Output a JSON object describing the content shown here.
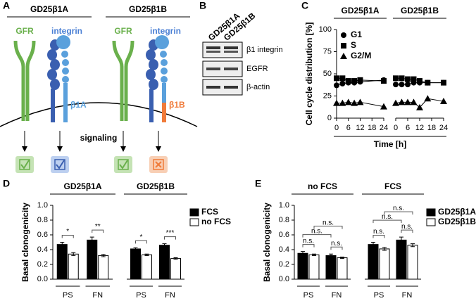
{
  "panel_labels": [
    "A",
    "B",
    "C",
    "D",
    "E"
  ],
  "diagram": {
    "cells": [
      {
        "title": "GD25β1A",
        "gfr": "GFR",
        "integrin": "integrin",
        "subunit": "β1A"
      },
      {
        "title": "GD25β1B",
        "gfr": "GFR",
        "integrin": "integrin",
        "subunit": "β1B"
      }
    ],
    "arrow_label": "signaling"
  },
  "blot": {
    "lanes": [
      "GD25β1A",
      "GD25β1B"
    ],
    "rows": [
      "β1 integrin",
      "EGFR",
      "β-actin"
    ]
  },
  "chart_data": [
    {
      "type": "line",
      "title": "GD25β1A",
      "ylabel": "Cell cycle distribution [%]",
      "xlabel": "Time [h]",
      "x": [
        0,
        3,
        6,
        9,
        12,
        24
      ],
      "xlim": [
        0,
        24
      ],
      "xticks": [
        0,
        6,
        12,
        18,
        24
      ],
      "ylim": [
        0,
        100
      ],
      "yticks": [
        0,
        25,
        50,
        75,
        100
      ],
      "legend": "upper left",
      "series": [
        {
          "name": "G1",
          "marker": "circle",
          "color": "#000000",
          "values": [
            37,
            39,
            40,
            40,
            41,
            43
          ]
        },
        {
          "name": "S",
          "marker": "square",
          "color": "#000000",
          "values": [
            45,
            45,
            42,
            42,
            43,
            42
          ]
        },
        {
          "name": "G2/M",
          "marker": "triangle",
          "color": "#000000",
          "values": [
            17,
            17,
            18,
            17,
            18,
            13
          ]
        }
      ]
    },
    {
      "type": "line",
      "title": "GD25β1B",
      "x": [
        0,
        3,
        6,
        9,
        12,
        16,
        24
      ],
      "xlim": [
        0,
        24
      ],
      "xticks": [
        0,
        6,
        12,
        18,
        24
      ],
      "ylim": [
        0,
        100
      ],
      "series": [
        {
          "marker": "circle",
          "color": "#000000",
          "values": [
            38,
            38,
            38,
            40,
            40,
            40,
            40
          ]
        },
        {
          "marker": "square",
          "color": "#000000",
          "values": [
            45,
            45,
            44,
            44,
            42,
            40,
            40
          ]
        },
        {
          "marker": "triangle",
          "color": "#000000",
          "values": [
            17,
            18,
            18,
            18,
            12,
            22,
            19
          ]
        }
      ]
    },
    {
      "type": "bar",
      "title": "GD25β1A",
      "ylabel": "Basal clonogenicity",
      "categories": [
        "PS",
        "FN"
      ],
      "ylim": [
        0,
        1
      ],
      "yticks": [
        {
          "value": 0,
          "label": "0.0"
        },
        0.2,
        0.4,
        0.6,
        0.8,
        {
          "value": 1,
          "label": "1.0"
        }
      ],
      "series": [
        {
          "color": "#000000",
          "values": [
            0.47,
            0.53
          ],
          "errors": [
            0.03,
            0.04
          ]
        },
        {
          "color": "#ffffff",
          "values": [
            0.34,
            0.32
          ],
          "errors": [
            0.02,
            0.015
          ]
        }
      ],
      "annotations": [
        "*",
        "**"
      ]
    },
    {
      "type": "bar",
      "title": "GD25β1B",
      "categories": [
        "PS",
        "FN"
      ],
      "ylim": [
        0,
        1
      ],
      "legend": "right",
      "series": [
        {
          "name": "FCS",
          "color": "#000000",
          "values": [
            0.41,
            0.46
          ],
          "errors": [
            0.015,
            0.02
          ]
        },
        {
          "name": "no FCS",
          "color": "#ffffff",
          "values": [
            0.33,
            0.28
          ],
          "errors": [
            0.01,
            0.01
          ]
        }
      ],
      "annotations": [
        "*",
        "***"
      ]
    },
    {
      "type": "bar",
      "title": "no FCS",
      "ylabel": "Basal clonogenicity",
      "categories": [
        "PS",
        "FN"
      ],
      "ylim": [
        0,
        1
      ],
      "yticks": [
        {
          "value": 0,
          "label": "0.0"
        },
        0.2,
        0.4,
        0.6,
        0.8,
        {
          "value": 1,
          "label": "1.0"
        }
      ],
      "series": [
        {
          "color": "#000000",
          "values": [
            0.35,
            0.32
          ],
          "errors": [
            0.025,
            0.02
          ]
        },
        {
          "color": "#ffffff",
          "values": [
            0.33,
            0.29
          ],
          "errors": [
            0.01,
            0.01
          ]
        }
      ],
      "annotations": [
        "n.s.",
        "n.s.",
        "n.s.",
        "n.s."
      ]
    },
    {
      "type": "bar",
      "title": "FCS",
      "categories": [
        "PS",
        "FN"
      ],
      "ylim": [
        0,
        1
      ],
      "legend": "right",
      "series": [
        {
          "name": "GD25β1A",
          "color": "#000000",
          "values": [
            0.47,
            0.53
          ],
          "errors": [
            0.03,
            0.04
          ]
        },
        {
          "name": "GD25β1B",
          "color": "#ffffff",
          "values": [
            0.41,
            0.46
          ],
          "errors": [
            0.02,
            0.02
          ]
        }
      ],
      "annotations": [
        "n.s.",
        "n.s.",
        "n.s.",
        "n.s."
      ]
    }
  ]
}
